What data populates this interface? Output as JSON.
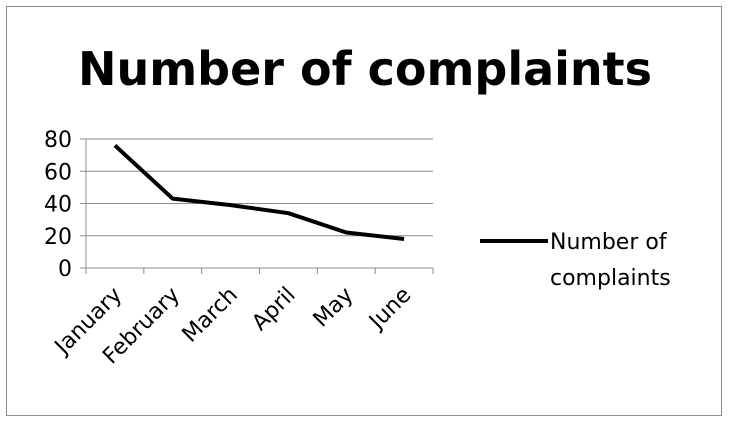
{
  "chart_data": {
    "type": "line",
    "title": "Number of complaints",
    "xlabel": "",
    "ylabel": "",
    "categories": [
      "January",
      "February",
      "March",
      "April",
      "May",
      "June"
    ],
    "series": [
      {
        "name": "Number of complaints",
        "values": [
          76,
          43,
          39,
          34,
          22,
          18
        ],
        "color": "#000000"
      }
    ],
    "ylim": [
      0,
      80
    ],
    "yticks": [
      "0",
      "20",
      "40",
      "60",
      "80"
    ],
    "grid": true,
    "legend": {
      "position": "right",
      "lines": [
        "Number of",
        "complaints"
      ]
    }
  }
}
